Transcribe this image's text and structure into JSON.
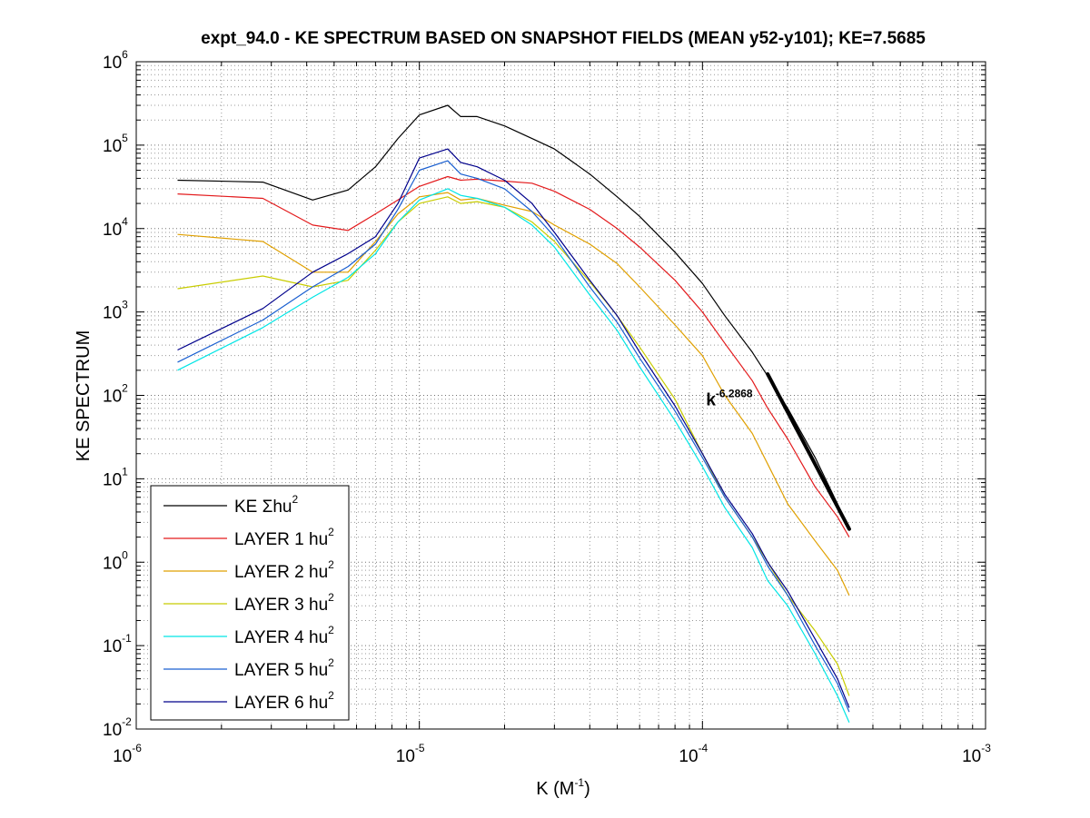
{
  "chart_data": {
    "type": "line",
    "title": "expt_94.0 - KE SPECTRUM BASED ON SNAPSHOT FIELDS (MEAN y52-y101); KE=7.5685",
    "xlabel": {
      "base": "K  (M",
      "exp": "-1",
      "close": ")"
    },
    "ylabel": "KE SPECTRUM",
    "xscale": "log",
    "yscale": "log",
    "xlim": [
      1e-06,
      0.001
    ],
    "ylim": [
      0.01,
      1000000
    ],
    "grid": true,
    "legend_position": "bottom-left",
    "x_ticks": [
      {
        "value": 1e-06,
        "base": "10",
        "exp": "-6"
      },
      {
        "value": 1e-05,
        "base": "10",
        "exp": "-5"
      },
      {
        "value": 0.0001,
        "base": "10",
        "exp": "-4"
      },
      {
        "value": 0.001,
        "base": "10",
        "exp": "-3"
      }
    ],
    "y_ticks": [
      {
        "value": 0.01,
        "base": "10",
        "exp": "-2"
      },
      {
        "value": 0.1,
        "base": "10",
        "exp": "-1"
      },
      {
        "value": 1,
        "base": "10",
        "exp": "0"
      },
      {
        "value": 10,
        "base": "10",
        "exp": "1"
      },
      {
        "value": 100,
        "base": "10",
        "exp": "2"
      },
      {
        "value": 1000,
        "base": "10",
        "exp": "3"
      },
      {
        "value": 10000,
        "base": "10",
        "exp": "4"
      },
      {
        "value": 100000,
        "base": "10",
        "exp": "5"
      },
      {
        "value": 1000000,
        "base": "10",
        "exp": "6"
      }
    ],
    "series": [
      {
        "name": "KE Σhu",
        "sup": "2",
        "color": "#000000",
        "x": [
          1.4e-06,
          2.8e-06,
          4.2e-06,
          5.6e-06,
          7e-06,
          8.4e-06,
          1e-05,
          1.26e-05,
          1.4e-05,
          1.6e-05,
          2e-05,
          2.5e-05,
          3e-05,
          4e-05,
          5e-05,
          6e-05,
          8e-05,
          0.0001,
          0.00012,
          0.00015,
          0.00017,
          0.0002,
          0.00025,
          0.0003,
          0.00033
        ],
        "values": [
          38000,
          36000,
          22000,
          29000,
          55000,
          120000,
          230000,
          300000,
          220000,
          220000,
          170000,
          120000,
          90000,
          45000,
          24000,
          14000,
          5200,
          2200,
          900,
          330,
          170,
          70,
          18,
          5,
          2.5
        ]
      },
      {
        "name": "LAYER 1 hu",
        "sup": "2",
        "color": "#e31a1c",
        "x": [
          1.4e-06,
          2.8e-06,
          4.2e-06,
          5.6e-06,
          7e-06,
          8.4e-06,
          1e-05,
          1.26e-05,
          1.4e-05,
          1.6e-05,
          2e-05,
          2.5e-05,
          3e-05,
          4e-05,
          5e-05,
          6e-05,
          8e-05,
          0.0001,
          0.00012,
          0.00015,
          0.00017,
          0.0002,
          0.00025,
          0.0003,
          0.00033
        ],
        "values": [
          26000,
          23000,
          11000,
          9500,
          15000,
          22000,
          32000,
          42000,
          38000,
          39000,
          37000,
          35000,
          28000,
          17000,
          10000,
          6000,
          2400,
          1000,
          420,
          150,
          70,
          30,
          8,
          3.5,
          2
        ]
      },
      {
        "name": "LAYER 2 hu",
        "sup": "2",
        "color": "#e0a000",
        "x": [
          1.4e-06,
          2.8e-06,
          4.2e-06,
          5.6e-06,
          7e-06,
          8.4e-06,
          1e-05,
          1.26e-05,
          1.4e-05,
          1.6e-05,
          2e-05,
          2.5e-05,
          3e-05,
          4e-05,
          5e-05,
          6e-05,
          8e-05,
          0.0001,
          0.00012,
          0.00015,
          0.00017,
          0.0002,
          0.00025,
          0.0003,
          0.00033
        ],
        "values": [
          8500,
          7000,
          3000,
          3000,
          7000,
          15000,
          24000,
          27000,
          22000,
          23000,
          19000,
          16000,
          11000,
          6500,
          3800,
          2000,
          700,
          300,
          100,
          35,
          15,
          5,
          1.8,
          0.8,
          0.4
        ]
      },
      {
        "name": "LAYER 3 hu",
        "sup": "2",
        "color": "#c8cc00",
        "x": [
          1.4e-06,
          2.8e-06,
          4.2e-06,
          5.6e-06,
          7e-06,
          8.4e-06,
          1e-05,
          1.26e-05,
          1.4e-05,
          1.6e-05,
          2e-05,
          2.5e-05,
          3e-05,
          4e-05,
          5e-05,
          6e-05,
          8e-05,
          0.0001,
          0.00012,
          0.00015,
          0.00017,
          0.0002,
          0.00025,
          0.0003,
          0.00033
        ],
        "values": [
          1900,
          2700,
          2000,
          2400,
          5500,
          12000,
          20000,
          24000,
          20000,
          21000,
          18000,
          12000,
          7000,
          2300,
          900,
          380,
          90,
          20,
          6,
          2,
          1,
          0.4,
          0.15,
          0.06,
          0.025
        ]
      },
      {
        "name": "LAYER 4 hu",
        "sup": "2",
        "color": "#00e5e5",
        "x": [
          1.4e-06,
          2.8e-06,
          4.2e-06,
          5.6e-06,
          7e-06,
          8.4e-06,
          1e-05,
          1.26e-05,
          1.4e-05,
          1.6e-05,
          2e-05,
          2.5e-05,
          3e-05,
          4e-05,
          5e-05,
          6e-05,
          8e-05,
          0.0001,
          0.00012,
          0.00015,
          0.00017,
          0.0002,
          0.00025,
          0.0003,
          0.00033
        ],
        "values": [
          200,
          650,
          1500,
          2600,
          5000,
          12000,
          22000,
          30000,
          25000,
          23000,
          18000,
          11000,
          6000,
          1600,
          600,
          220,
          50,
          14,
          4.5,
          1.5,
          0.6,
          0.3,
          0.08,
          0.025,
          0.012
        ]
      },
      {
        "name": "LAYER 5 hu",
        "sup": "2",
        "color": "#1a5fd0",
        "x": [
          1.4e-06,
          2.8e-06,
          4.2e-06,
          5.6e-06,
          7e-06,
          8.4e-06,
          1e-05,
          1.26e-05,
          1.4e-05,
          1.6e-05,
          2e-05,
          2.5e-05,
          3e-05,
          4e-05,
          5e-05,
          6e-05,
          8e-05,
          0.0001,
          0.00012,
          0.00015,
          0.00017,
          0.0002,
          0.00025,
          0.0003,
          0.00033
        ],
        "values": [
          250,
          800,
          2000,
          3500,
          6500,
          17000,
          50000,
          65000,
          45000,
          40000,
          30000,
          16000,
          8000,
          2000,
          750,
          280,
          65,
          18,
          6,
          2,
          0.9,
          0.4,
          0.1,
          0.035,
          0.016
        ]
      },
      {
        "name": "LAYER 6 hu",
        "sup": "2",
        "color": "#00008b",
        "x": [
          1.4e-06,
          2.8e-06,
          4.2e-06,
          5.6e-06,
          7e-06,
          8.4e-06,
          1e-05,
          1.26e-05,
          1.4e-05,
          1.6e-05,
          2e-05,
          2.5e-05,
          3e-05,
          4e-05,
          5e-05,
          6e-05,
          8e-05,
          0.0001,
          0.00012,
          0.00015,
          0.00017,
          0.0002,
          0.00025,
          0.0003,
          0.00033
        ],
        "values": [
          350,
          1100,
          3000,
          5000,
          8000,
          20000,
          70000,
          90000,
          62000,
          55000,
          38000,
          20000,
          9000,
          2400,
          900,
          330,
          75,
          20,
          6.5,
          2.2,
          1,
          0.45,
          0.12,
          0.04,
          0.018
        ]
      }
    ],
    "fit_line": {
      "color": "#000000",
      "x": [
        0.00017,
        0.00033
      ],
      "values": [
        180,
        2.5
      ]
    },
    "annotation": {
      "base": "k",
      "exp": "-6.2868",
      "x": 0.0001,
      "y": 90
    }
  }
}
